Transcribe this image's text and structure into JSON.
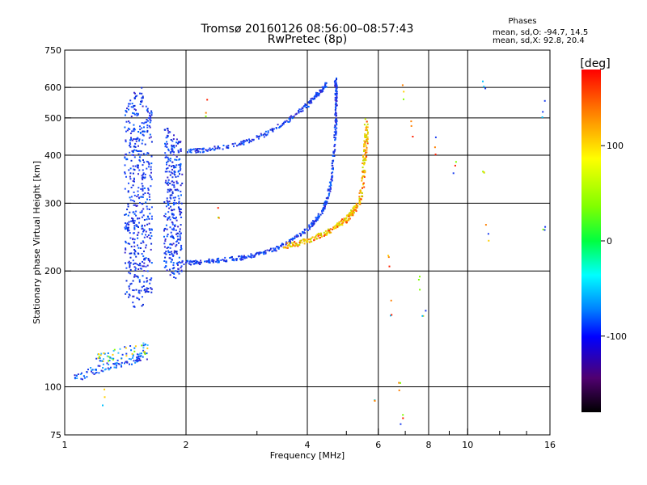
{
  "header": {
    "title": "Tromsø 20160126 08:56:00–08:57:43",
    "subtitle": "RwPretec (8p)"
  },
  "stats": {
    "heading": "Phases",
    "line_o": "mean, sd,O: -94.7, 14.5",
    "line_x": "mean, sd,X:  92.8, 20.4"
  },
  "colorbar": {
    "label": "[deg]",
    "ticks": [
      "100",
      "0",
      "-100"
    ],
    "tick_values": [
      100,
      0,
      -100
    ],
    "range": [
      -180,
      180
    ]
  },
  "chart_data": {
    "type": "scatter",
    "xlabel": "Frequency [MHz]",
    "ylabel": "Stationary phase Virtual Height [km]",
    "xscale": "log",
    "yscale": "log",
    "xlim": [
      1,
      16
    ],
    "ylim": [
      75,
      750
    ],
    "x_ticks": [
      1,
      2,
      4,
      6,
      8,
      10,
      16
    ],
    "x_tick_labels": [
      "1",
      "2",
      "4",
      "6",
      "8",
      "10",
      "16"
    ],
    "x_minor_ticks": [
      3,
      5,
      7,
      9,
      12,
      14
    ],
    "y_ticks": [
      75,
      100,
      200,
      300,
      400,
      500,
      600,
      750
    ],
    "y_tick_labels": [
      "75",
      "100",
      "200",
      "300",
      "400",
      "500",
      "600",
      "750"
    ],
    "grid_x": [
      2,
      4,
      6,
      8,
      10
    ],
    "grid_y": [
      100,
      200,
      300,
      400,
      500,
      600
    ],
    "colors": {
      "o_mode": "#1a3df0",
      "x_mode": "#e6d000"
    },
    "traces": {
      "e_layer_low": [
        [
          1.05,
          105
        ],
        [
          1.12,
          108
        ],
        [
          1.18,
          110
        ],
        [
          1.25,
          112
        ],
        [
          1.32,
          114
        ],
        [
          1.4,
          116
        ],
        [
          1.5,
          118
        ],
        [
          1.6,
          121
        ]
      ],
      "e_layer_high": [
        [
          1.2,
          117
        ],
        [
          1.3,
          120
        ],
        [
          1.4,
          122
        ],
        [
          1.5,
          124
        ],
        [
          1.6,
          126
        ]
      ],
      "f_low_o": [
        [
          1.95,
          210
        ],
        [
          2.1,
          210
        ],
        [
          2.3,
          212
        ],
        [
          2.5,
          214
        ],
        [
          2.8,
          217
        ],
        [
          3.1,
          222
        ],
        [
          3.4,
          230
        ],
        [
          3.7,
          242
        ],
        [
          4.0,
          256
        ],
        [
          4.2,
          270
        ],
        [
          4.4,
          290
        ],
        [
          4.5,
          310
        ],
        [
          4.6,
          350
        ],
        [
          4.65,
          400
        ],
        [
          4.7,
          460
        ],
        [
          4.72,
          520
        ],
        [
          4.72,
          580
        ],
        [
          4.7,
          640
        ]
      ],
      "f_high_o": [
        [
          2.0,
          410
        ],
        [
          2.2,
          412
        ],
        [
          2.5,
          420
        ],
        [
          2.8,
          432
        ],
        [
          3.1,
          450
        ],
        [
          3.4,
          475
        ],
        [
          3.7,
          505
        ],
        [
          4.0,
          540
        ],
        [
          4.2,
          570
        ],
        [
          4.35,
          590
        ],
        [
          4.45,
          610
        ]
      ],
      "f_x": [
        [
          3.5,
          232
        ],
        [
          3.8,
          236
        ],
        [
          4.1,
          242
        ],
        [
          4.4,
          250
        ],
        [
          4.7,
          260
        ],
        [
          5.0,
          272
        ],
        [
          5.2,
          285
        ],
        [
          5.4,
          305
        ],
        [
          5.5,
          340
        ],
        [
          5.55,
          390
        ],
        [
          5.6,
          440
        ],
        [
          5.6,
          490
        ]
      ],
      "spread_columns": [
        [
          1.45,
          170,
          560
        ],
        [
          1.52,
          160,
          600
        ],
        [
          1.6,
          175,
          540
        ],
        [
          1.82,
          195,
          470
        ],
        [
          1.9,
          190,
          440
        ]
      ],
      "sparse_points": [
        [
          1.25,
          95
        ],
        [
          2.25,
          530
        ],
        [
          2.4,
          280
        ],
        [
          5.9,
          95
        ],
        [
          6.4,
          210
        ],
        [
          6.5,
          160
        ],
        [
          6.8,
          103
        ],
        [
          6.85,
          84
        ],
        [
          6.9,
          580
        ],
        [
          7.3,
          470
        ],
        [
          8.3,
          420
        ],
        [
          9.3,
          370
        ],
        [
          11.0,
          360
        ],
        [
          11.0,
          590
        ],
        [
          11.2,
          250
        ],
        [
          15.4,
          530
        ],
        [
          15.5,
          250
        ],
        [
          7.6,
          190
        ],
        [
          7.8,
          150
        ]
      ]
    }
  }
}
